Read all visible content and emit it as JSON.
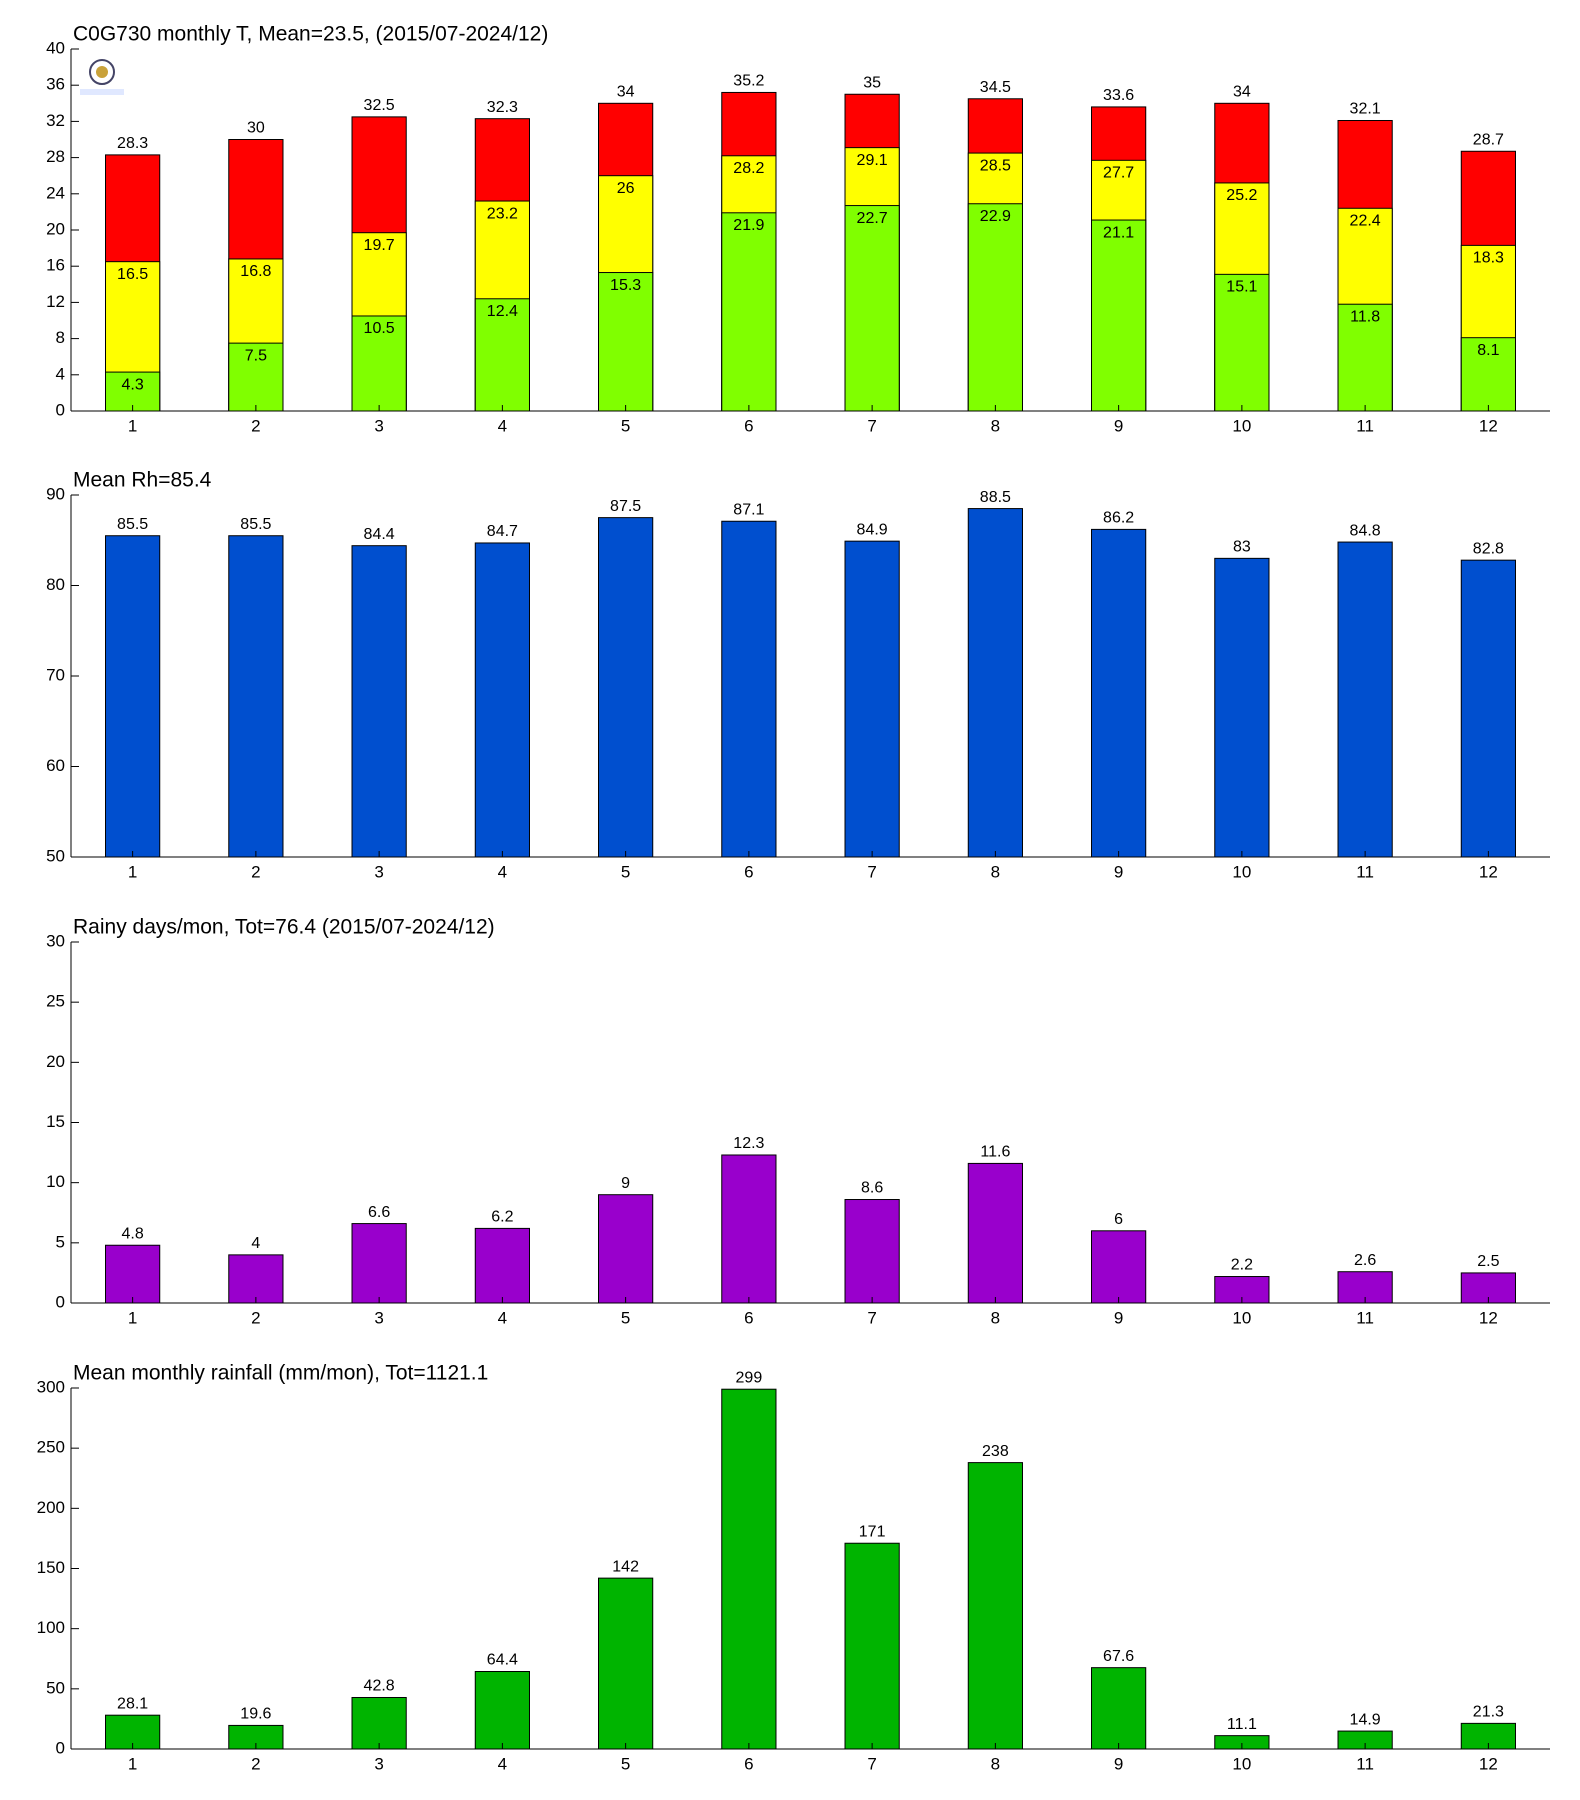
{
  "chart_data": [
    {
      "type": "bar",
      "title": "C0G730 monthly T, Mean=23.5, (2015/07-2024/12)",
      "categories": [
        "1",
        "2",
        "3",
        "4",
        "5",
        "6",
        "7",
        "8",
        "9",
        "10",
        "11",
        "12"
      ],
      "series": [
        {
          "color": "#ff0000",
          "values": [
            28.3,
            30,
            32.5,
            32.3,
            34,
            35.2,
            35,
            34.5,
            33.6,
            34,
            32.1,
            28.7
          ]
        },
        {
          "color": "#ffff00",
          "values": [
            16.5,
            16.8,
            19.7,
            23.2,
            26,
            28.2,
            29.1,
            28.5,
            27.7,
            25.2,
            22.4,
            18.3
          ]
        },
        {
          "color": "#80ff00",
          "values": [
            4.3,
            7.5,
            10.5,
            12.4,
            15.3,
            21.9,
            22.7,
            22.9,
            21.1,
            15.1,
            11.8,
            8.1
          ]
        }
      ],
      "ylim": [
        0,
        40
      ],
      "yticks": [
        0,
        4,
        8,
        12,
        16,
        20,
        24,
        28,
        32,
        36,
        40
      ]
    },
    {
      "type": "bar",
      "title": "Mean Rh=85.4",
      "categories": [
        "1",
        "2",
        "3",
        "4",
        "5",
        "6",
        "7",
        "8",
        "9",
        "10",
        "11",
        "12"
      ],
      "series": [
        {
          "color": "#004fcf",
          "values": [
            85.5,
            85.5,
            84.4,
            84.7,
            87.5,
            87.1,
            84.9,
            88.5,
            86.2,
            83,
            84.8,
            82.8
          ]
        }
      ],
      "ylim": [
        50,
        90
      ],
      "yticks": [
        50,
        60,
        70,
        80,
        90
      ]
    },
    {
      "type": "bar",
      "title": "Rainy days/mon, Tot=76.4 (2015/07-2024/12)",
      "categories": [
        "1",
        "2",
        "3",
        "4",
        "5",
        "6",
        "7",
        "8",
        "9",
        "10",
        "11",
        "12"
      ],
      "series": [
        {
          "color": "#9900cc",
          "values": [
            4.8,
            4,
            6.6,
            6.2,
            9,
            12.3,
            8.6,
            11.6,
            6,
            2.2,
            2.6,
            2.5
          ]
        }
      ],
      "ylim": [
        0,
        30
      ],
      "yticks": [
        0,
        5,
        10,
        15,
        20,
        25,
        30
      ]
    },
    {
      "type": "bar",
      "title": "Mean monthly rainfall (mm/mon), Tot=1121.1",
      "categories": [
        "1",
        "2",
        "3",
        "4",
        "5",
        "6",
        "7",
        "8",
        "9",
        "10",
        "11",
        "12"
      ],
      "series": [
        {
          "color": "#00b400",
          "values": [
            28.1,
            19.6,
            42.8,
            64.4,
            142,
            299,
            171,
            238,
            67.6,
            11.1,
            14.9,
            21.3
          ]
        }
      ],
      "ylim": [
        0,
        300
      ],
      "yticks": [
        0,
        50,
        100,
        150,
        200,
        250,
        300
      ]
    }
  ]
}
